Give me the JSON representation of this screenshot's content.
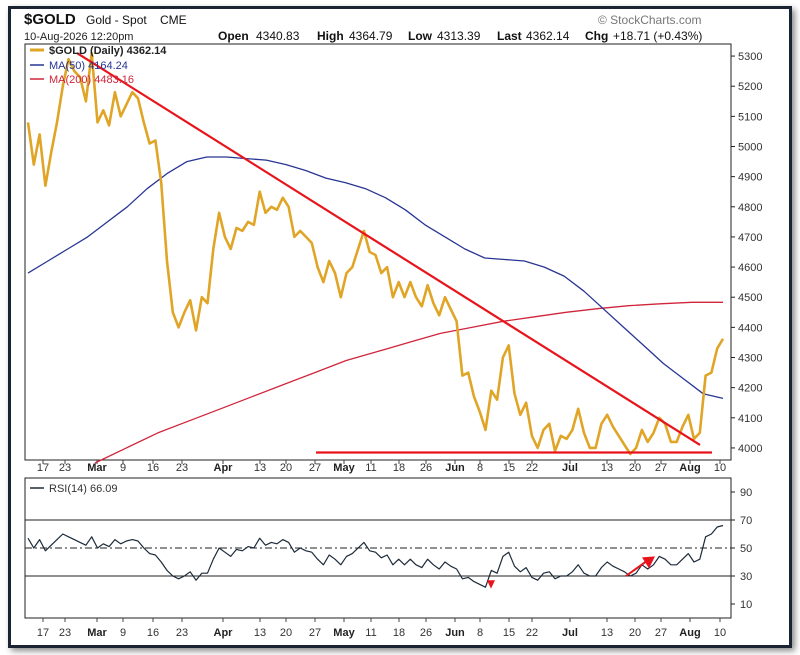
{
  "header": {
    "symbol": "$GOLD",
    "name": "Gold - Spot",
    "exchange": "CME",
    "date": "10-Aug-2026 12:20pm",
    "open_label": "Open",
    "open": "4340.83",
    "high_label": "High",
    "high": "4364.79",
    "low_label": "Low",
    "low": "4313.39",
    "last_label": "Last",
    "last": "4362.14",
    "chg_label": "Chg",
    "chg": "+18.71 (+0.43%)",
    "watermark": "© StockCharts.com"
  },
  "legend": {
    "price": "$GOLD (Daily) 4362.14",
    "ma50": "MA(50) 4164.24",
    "ma200": "MA(200) 4483.16",
    "rsi": "RSI(14) 66.09"
  },
  "colors": {
    "price": "#e0a526",
    "ma50": "#283593",
    "ma200": "#d0253b",
    "trend": "#e8141c",
    "rsi": "#1c2a3a",
    "frame": "#1a2433"
  },
  "chart_data": [
    {
      "type": "line",
      "title": "$GOLD (Daily)",
      "x_tick_labels": [
        "17",
        "23",
        "Mar",
        "9",
        "16",
        "23",
        "Apr",
        "13",
        "20",
        "27",
        "May",
        "11",
        "18",
        "26",
        "Jun",
        "8",
        "15",
        "22",
        "Jul",
        "13",
        "20",
        "27",
        "Aug",
        "10"
      ],
      "y_ticks": [
        4000,
        4100,
        4200,
        4300,
        4400,
        4500,
        4600,
        4700,
        4800,
        4900,
        5000,
        5100,
        5200,
        5300
      ],
      "ylim": [
        3960,
        5340
      ],
      "grid": false,
      "legend_position": "top-left",
      "series": [
        {
          "name": "$GOLD (Daily)",
          "values": [
            5080,
            4940,
            5040,
            4870,
            4980,
            5080,
            5200,
            5290,
            5250,
            5230,
            5150,
            5310,
            5080,
            5120,
            5070,
            5180,
            5100,
            5140,
            5180,
            5160,
            5080,
            5010,
            5020,
            4880,
            4620,
            4450,
            4400,
            4450,
            4490,
            4390,
            4500,
            4480,
            4660,
            4780,
            4700,
            4660,
            4730,
            4720,
            4750,
            4740,
            4850,
            4780,
            4800,
            4790,
            4830,
            4800,
            4700,
            4720,
            4700,
            4680,
            4600,
            4550,
            4620,
            4580,
            4500,
            4580,
            4600,
            4660,
            4720,
            4650,
            4640,
            4580,
            4600,
            4500,
            4550,
            4500,
            4550,
            4500,
            4470,
            4540,
            4480,
            4440,
            4500,
            4460,
            4420,
            4240,
            4250,
            4170,
            4120,
            4060,
            4190,
            4160,
            4300,
            4340,
            4180,
            4110,
            4150,
            4040,
            4000,
            4060,
            4080,
            3990,
            4040,
            4030,
            4060,
            4130,
            4050,
            4000,
            4000,
            4080,
            4110,
            4070,
            4040,
            4010,
            3980,
            4000,
            4060,
            4020,
            4050,
            4100,
            4080,
            4020,
            4020,
            4070,
            4110,
            4030,
            4050,
            4240,
            4250,
            4330,
            4362.14
          ]
        },
        {
          "name": "MA(50)",
          "values": [
            4580,
            4620,
            4660,
            4700,
            4750,
            4800,
            4860,
            4910,
            4950,
            4965,
            4965,
            4960,
            4955,
            4940,
            4920,
            4895,
            4880,
            4860,
            4830,
            4790,
            4740,
            4700,
            4660,
            4630,
            4625,
            4620,
            4600,
            4570,
            4520,
            4460,
            4400,
            4340,
            4280,
            4230,
            4180,
            4164.24
          ]
        },
        {
          "name": "MA(200)",
          "values": [
            3950,
            4000,
            4050,
            4090,
            4130,
            4170,
            4210,
            4250,
            4290,
            4320,
            4350,
            4380,
            4400,
            4420,
            4435,
            4450,
            4462,
            4472,
            4478,
            4483,
            4483.16
          ]
        }
      ],
      "annotations": [
        {
          "kind": "downtrend-line",
          "from": [
            "Feb 20",
            5310
          ],
          "to": [
            "Aug 7",
            4010
          ]
        },
        {
          "kind": "horizontal-support",
          "value": 3985,
          "from": "May",
          "to": "Aug 10"
        }
      ]
    },
    {
      "type": "line",
      "title": "RSI(14)",
      "y_ticks": [
        10,
        30,
        50,
        70,
        90
      ],
      "ylim": [
        0,
        100
      ],
      "reference_lines": [
        30,
        50,
        70
      ],
      "legend_position": "top-left",
      "series": [
        {
          "name": "RSI(14)",
          "values": [
            57,
            50,
            56,
            48,
            52,
            56,
            60,
            58,
            56,
            54,
            52,
            58,
            50,
            53,
            51,
            56,
            53,
            55,
            56,
            55,
            50,
            46,
            45,
            40,
            34,
            30,
            28,
            30,
            33,
            27,
            32,
            32,
            42,
            50,
            47,
            44,
            49,
            48,
            51,
            50,
            57,
            52,
            54,
            53,
            56,
            54,
            47,
            50,
            48,
            47,
            42,
            38,
            45,
            42,
            38,
            44,
            46,
            50,
            54,
            48,
            47,
            43,
            45,
            38,
            42,
            38,
            42,
            38,
            36,
            42,
            38,
            35,
            40,
            37,
            35,
            28,
            29,
            26,
            24,
            22,
            34,
            32,
            44,
            47,
            37,
            33,
            36,
            29,
            27,
            32,
            33,
            28,
            30,
            30,
            33,
            38,
            32,
            30,
            30,
            36,
            40,
            37,
            35,
            33,
            30,
            32,
            38,
            35,
            38,
            44,
            42,
            38,
            38,
            42,
            46,
            40,
            42,
            58,
            60,
            65,
            66.09
          ]
        }
      ],
      "annotations": [
        {
          "kind": "arrow",
          "from": [
            "Jul 17",
            30
          ],
          "to": [
            "Jul 23",
            42
          ]
        }
      ]
    }
  ]
}
